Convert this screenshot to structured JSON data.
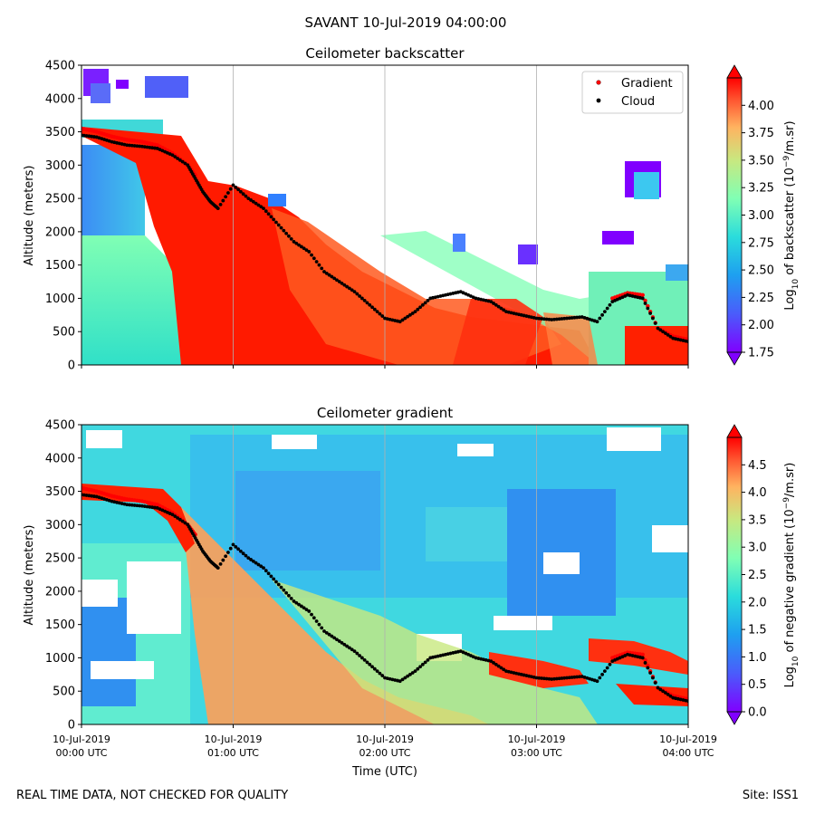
{
  "figure": {
    "title": "SAVANT 10-Jul-2019 04:00:00",
    "footer_left": "REAL TIME DATA, NOT CHECKED FOR QUALITY",
    "footer_right": "Site: ISS1",
    "xlabel": "Time (UTC)",
    "x_ticks": [
      {
        "date": "10-Jul-2019",
        "time": "00:00 UTC"
      },
      {
        "date": "10-Jul-2019",
        "time": "01:00 UTC"
      },
      {
        "date": "10-Jul-2019",
        "time": "02:00 UTC"
      },
      {
        "date": "10-Jul-2019",
        "time": "03:00 UTC"
      },
      {
        "date": "10-Jul-2019",
        "time": "04:00 UTC"
      }
    ]
  },
  "chart_data": [
    {
      "type": "heatmap",
      "title": "Ceilometer backscatter",
      "ylabel": "Altitude (meters)",
      "xlabel": "Time (UTC)",
      "xlim_hours": [
        0,
        4
      ],
      "ylim": [
        0,
        4500
      ],
      "y_ticks": [
        "0",
        "500",
        "1000",
        "1500",
        "2000",
        "2500",
        "3000",
        "3500",
        "4000",
        "4500"
      ],
      "grid": "vertical",
      "colormap": "rainbow",
      "colorbar": {
        "label_prefix": "Log",
        "label_sub": "10",
        "label_mid": " of backscatter (10",
        "label_sup": "−9",
        "label_suffix": "/m.sr)",
        "range": [
          1.75,
          4.25
        ],
        "ticks": [
          "1.75",
          "2.00",
          "2.25",
          "2.50",
          "2.75",
          "3.00",
          "3.25",
          "3.50",
          "3.75",
          "4.00"
        ]
      },
      "legend": {
        "position": "top-right",
        "entries": [
          {
            "label": "Gradient",
            "color": "#ff0000"
          },
          {
            "label": "Cloud",
            "color": "#000000"
          }
        ]
      }
    },
    {
      "type": "heatmap",
      "title": "Ceilometer gradient",
      "ylabel": "Altitude (meters)",
      "xlabel": "Time (UTC)",
      "xlim_hours": [
        0,
        4
      ],
      "ylim": [
        0,
        4500
      ],
      "y_ticks": [
        "0",
        "500",
        "1000",
        "1500",
        "2000",
        "2500",
        "3000",
        "3500",
        "4000",
        "4500"
      ],
      "grid": "vertical",
      "colormap": "rainbow",
      "colorbar": {
        "label_prefix": "Log",
        "label_sub": "10",
        "label_mid": " of negative gradient (10",
        "label_sup": "−9",
        "label_suffix": "/m.sr)",
        "range": [
          0,
          5
        ],
        "ticks": [
          "0.0",
          "0.5",
          "1.0",
          "1.5",
          "2.0",
          "2.5",
          "3.0",
          "3.5",
          "4.0",
          "4.5"
        ]
      }
    }
  ],
  "cloud_base_series": {
    "name": "Cloud",
    "color": "#000000",
    "t_hours": [
      0.0,
      0.1,
      0.2,
      0.3,
      0.4,
      0.5,
      0.6,
      0.7,
      0.75,
      0.8,
      0.85,
      0.9,
      1.0,
      1.1,
      1.2,
      1.3,
      1.4,
      1.5,
      1.6,
      1.7,
      1.8,
      1.9,
      2.0,
      2.1,
      2.2,
      2.3,
      2.4,
      2.5,
      2.6,
      2.7,
      2.8,
      2.9,
      3.0,
      3.1,
      3.2,
      3.3,
      3.4,
      3.5,
      3.6,
      3.7,
      3.8,
      3.9,
      4.0
    ],
    "altitude_m": [
      3450,
      3420,
      3350,
      3300,
      3280,
      3250,
      3150,
      3000,
      2800,
      2600,
      2450,
      2350,
      2700,
      2500,
      2350,
      2100,
      1850,
      1700,
      1400,
      1250,
      1100,
      900,
      700,
      650,
      800,
      1000,
      1050,
      1100,
      1000,
      950,
      800,
      750,
      700,
      680,
      700,
      720,
      650,
      950,
      1050,
      1000,
      550,
      400,
      350
    ]
  },
  "gradient_series": {
    "name": "Gradient",
    "color": "#ff0000",
    "t_hours": [
      0.0,
      0.1,
      0.2,
      0.3,
      0.4,
      0.5,
      0.6,
      0.7,
      0.75,
      3.5,
      3.6,
      3.7,
      3.8,
      3.9,
      4.0
    ],
    "altitude_m": [
      3550,
      3500,
      3430,
      3380,
      3350,
      3300,
      3180,
      3000,
      2850,
      1000,
      1080,
      1050,
      550,
      430,
      380
    ]
  }
}
